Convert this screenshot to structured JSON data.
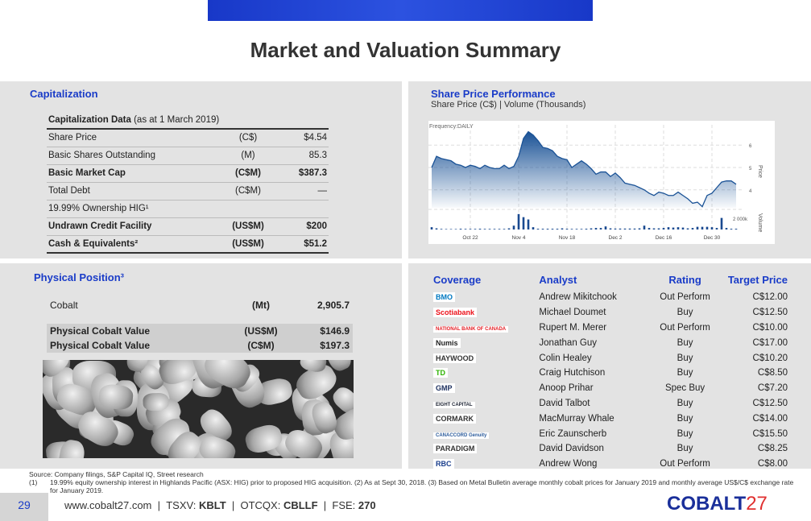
{
  "title": "Market and Valuation Summary",
  "capitalization": {
    "heading": "Capitalization",
    "table_title": "Capitalization Data",
    "table_sub": "(as at 1 March 2019)",
    "rows": [
      {
        "label": "Share Price",
        "unit": "(C$)",
        "value": "$4.54",
        "bold": false
      },
      {
        "label": "Basic Shares Outstanding",
        "unit": "(M)",
        "value": "85.3",
        "bold": false
      },
      {
        "label": "Basic Market Cap",
        "unit": "(C$M)",
        "value": "$387.3",
        "bold": true
      },
      {
        "label": "Total Debt",
        "unit": "(C$M)",
        "value": "—",
        "bold": false
      },
      {
        "label": "19.99% Ownership HIG¹",
        "unit": "",
        "value": "",
        "bold": false
      },
      {
        "label": "Undrawn Credit Facility",
        "unit": "(US$M)",
        "value": "$200",
        "bold": true
      },
      {
        "label": "Cash & Equivalents²",
        "unit": "(US$M)",
        "value": "$51.2",
        "bold": true
      }
    ]
  },
  "share_price": {
    "heading": "Share Price Performance",
    "subheading": "Share Price (C$) | Volume (Thousands)"
  },
  "chart_data": {
    "type": "area",
    "frequency_label": "Frequency:DAILY",
    "price_label": "Price",
    "volume_label": "Volume",
    "volume_tick": "2 000k",
    "x_ticks": [
      "Oct 22",
      "Nov 4",
      "Nov 18",
      "Dec 2",
      "Dec 16",
      "Dec 30"
    ],
    "y_ticks": [
      4,
      5,
      6
    ],
    "ylim": [
      3.2,
      6.8
    ],
    "price": [
      5.0,
      5.5,
      5.4,
      5.35,
      5.3,
      5.15,
      5.1,
      5.0,
      5.1,
      5.05,
      4.95,
      5.1,
      5.0,
      4.95,
      4.95,
      5.1,
      4.95,
      5.05,
      5.5,
      6.3,
      6.6,
      6.45,
      6.2,
      5.9,
      5.85,
      5.75,
      5.5,
      5.4,
      5.35,
      5.0,
      5.15,
      5.3,
      5.15,
      4.95,
      4.7,
      4.8,
      4.8,
      4.6,
      4.75,
      4.55,
      4.3,
      4.25,
      4.2,
      4.1,
      4.0,
      3.85,
      3.75,
      3.9,
      3.85,
      3.75,
      3.75,
      3.9,
      3.75,
      3.6,
      3.4,
      3.45,
      3.25,
      3.75,
      3.85,
      4.1,
      4.35,
      4.4,
      4.4,
      4.25
    ],
    "volume": [
      300,
      150,
      80,
      60,
      60,
      60,
      100,
      80,
      80,
      80,
      100,
      80,
      80,
      80,
      80,
      80,
      150,
      500,
      2000,
      1600,
      1300,
      300,
      100,
      100,
      100,
      100,
      100,
      150,
      100,
      80,
      80,
      80,
      100,
      150,
      200,
      200,
      400,
      150,
      120,
      120,
      120,
      120,
      120,
      150,
      500,
      200,
      150,
      150,
      200,
      300,
      250,
      300,
      250,
      150,
      200,
      350,
      350,
      350,
      300,
      200,
      1500,
      200,
      100,
      100
    ],
    "vol_max": 2400
  },
  "physical": {
    "heading": "Physical Position³",
    "rows": [
      {
        "label": "Cobalt",
        "unit": "(Mt)",
        "value": "2,905.7"
      },
      {
        "label": "Physical Cobalt Value",
        "unit": "(US$M)",
        "value": "$146.9"
      },
      {
        "label": "Physical Cobalt Value",
        "unit": "(C$M)",
        "value": "$197.3"
      }
    ]
  },
  "coverage": {
    "headers": [
      "Coverage",
      "Analyst",
      "Rating",
      "Target Price"
    ],
    "rows": [
      {
        "firm": "BMO",
        "analyst": "Andrew Mikitchook",
        "rating": "Out Perform",
        "target": "C$12.00",
        "color": "#0079c1"
      },
      {
        "firm": "Scotiabank",
        "analyst": "Michael Doumet",
        "rating": "Buy",
        "target": "C$12.50",
        "color": "#ec111a"
      },
      {
        "firm": "NATIONAL BANK OF CANADA",
        "analyst": "Rupert M. Merer",
        "rating": "Out Perform",
        "target": "C$10.00",
        "color": "#e41c23"
      },
      {
        "firm": "Numis",
        "analyst": "Jonathan Guy",
        "rating": "Buy",
        "target": "C$17.00",
        "color": "#222222"
      },
      {
        "firm": "HAYWOOD",
        "analyst": "Colin Healey",
        "rating": "Buy",
        "target": "C$10.20",
        "color": "#333333"
      },
      {
        "firm": "TD",
        "analyst": "Craig Hutchison",
        "rating": "Buy",
        "target": "C$8.50",
        "color": "#2db200"
      },
      {
        "firm": "GMP",
        "analyst": "Anoop Prihar",
        "rating": "Spec Buy",
        "target": "C$7.20",
        "color": "#1c2f5e"
      },
      {
        "firm": "EIGHT CAPITAL",
        "analyst": "David Talbot",
        "rating": "Buy",
        "target": "C$12.50",
        "color": "#1a2030"
      },
      {
        "firm": "CORMARK",
        "analyst": "MacMurray Whale",
        "rating": "Buy",
        "target": "C$14.00",
        "color": "#333333"
      },
      {
        "firm": "CANACCORD Genuity",
        "analyst": "Eric Zaunscherb",
        "rating": "Buy",
        "target": "C$15.50",
        "color": "#2a5a9a"
      },
      {
        "firm": "PARADIGM",
        "analyst": "David Davidson",
        "rating": "Buy",
        "target": "C$8.25",
        "color": "#333333"
      },
      {
        "firm": "RBC",
        "analyst": "Andrew Wong",
        "rating": "Out Perform",
        "target": "C$8.00",
        "color": "#1a3e8c"
      }
    ]
  },
  "footnotes": {
    "source": "Source: Company filings, S&P Capital IQ, Street research",
    "n1": "(1)",
    "text": "19.99% equity ownership interest in Highlands Pacific (ASX: HIG) prior to proposed HIG acquisition.   (2) As at  Sept 30, 2018.  (3) Based on Metal Bulletin average monthly cobalt prices for January 2019 and monthly average US$/C$ exchange rate for January 2019."
  },
  "footer": {
    "page": "29",
    "website": "www.cobalt27.com",
    "tsxv_label": "TSXV:",
    "tsxv": "KBLT",
    "otcqx_label": "OTCQX:",
    "otcqx": "CBLLF",
    "fse_label": "FSE:",
    "fse": "270",
    "brand_main": "COBALT",
    "brand_num": "27"
  }
}
